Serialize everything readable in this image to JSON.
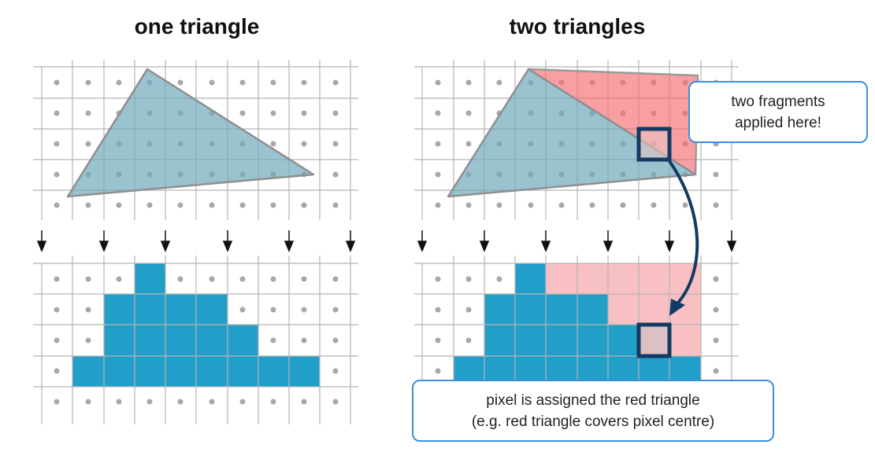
{
  "titles": {
    "left": "one triangle",
    "right": "two triangles"
  },
  "callouts": {
    "two_fragments": [
      "two fragments",
      "applied here!"
    ],
    "pixel_assigned": [
      "pixel is assigned the red triangle",
      "(e.g. red triangle covers pixel centre)"
    ]
  },
  "colors": {
    "grid": "#b5b5b5",
    "dot": "#a8a8a8",
    "triangle_blue": "#7aaebf",
    "triangle_red": "#f47f80",
    "fragment_blue": "#219fc8",
    "fragment_red": "#f9c0c4",
    "overlap": "#dcc0c4",
    "highlight": "#123a63",
    "callout_border": "#3a8fe0"
  }
}
